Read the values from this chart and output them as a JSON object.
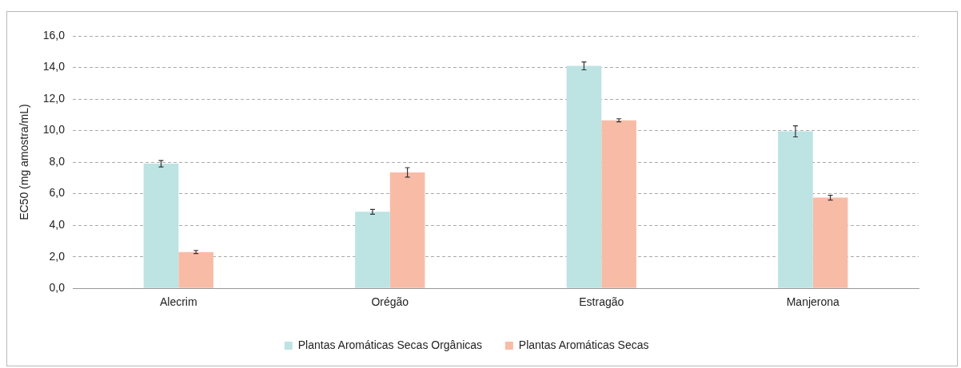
{
  "chart_data": {
    "type": "bar",
    "ylabel": "EC50 (mg amostra/mL)",
    "categories": [
      "Alecrim",
      "Orégão",
      "Estragão",
      "Manjerona"
    ],
    "series": [
      {
        "name": "Plantas Aromáticas Secas Orgânicas",
        "color": "#bde3e3",
        "values": [
          7.9,
          4.85,
          14.1,
          9.95
        ],
        "errors": [
          0.2,
          0.15,
          0.25,
          0.35
        ]
      },
      {
        "name": "Plantas Aromáticas Secas",
        "color": "#f8bca6",
        "values": [
          2.3,
          7.35,
          10.65,
          5.75
        ],
        "errors": [
          0.1,
          0.3,
          0.1,
          0.15
        ]
      }
    ],
    "ylim": [
      0,
      16
    ],
    "yticks": [
      {
        "value": 0,
        "label": "0,0"
      },
      {
        "value": 2,
        "label": "2,0"
      },
      {
        "value": 4,
        "label": "4,0"
      },
      {
        "value": 6,
        "label": "6,0"
      },
      {
        "value": 8,
        "label": "8,0"
      },
      {
        "value": 10,
        "label": "10,0"
      },
      {
        "value": 12,
        "label": "12,0"
      },
      {
        "value": 14,
        "label": "14,0"
      },
      {
        "value": 16,
        "label": "16,0"
      }
    ],
    "grid": "y",
    "legend": "bottom"
  }
}
